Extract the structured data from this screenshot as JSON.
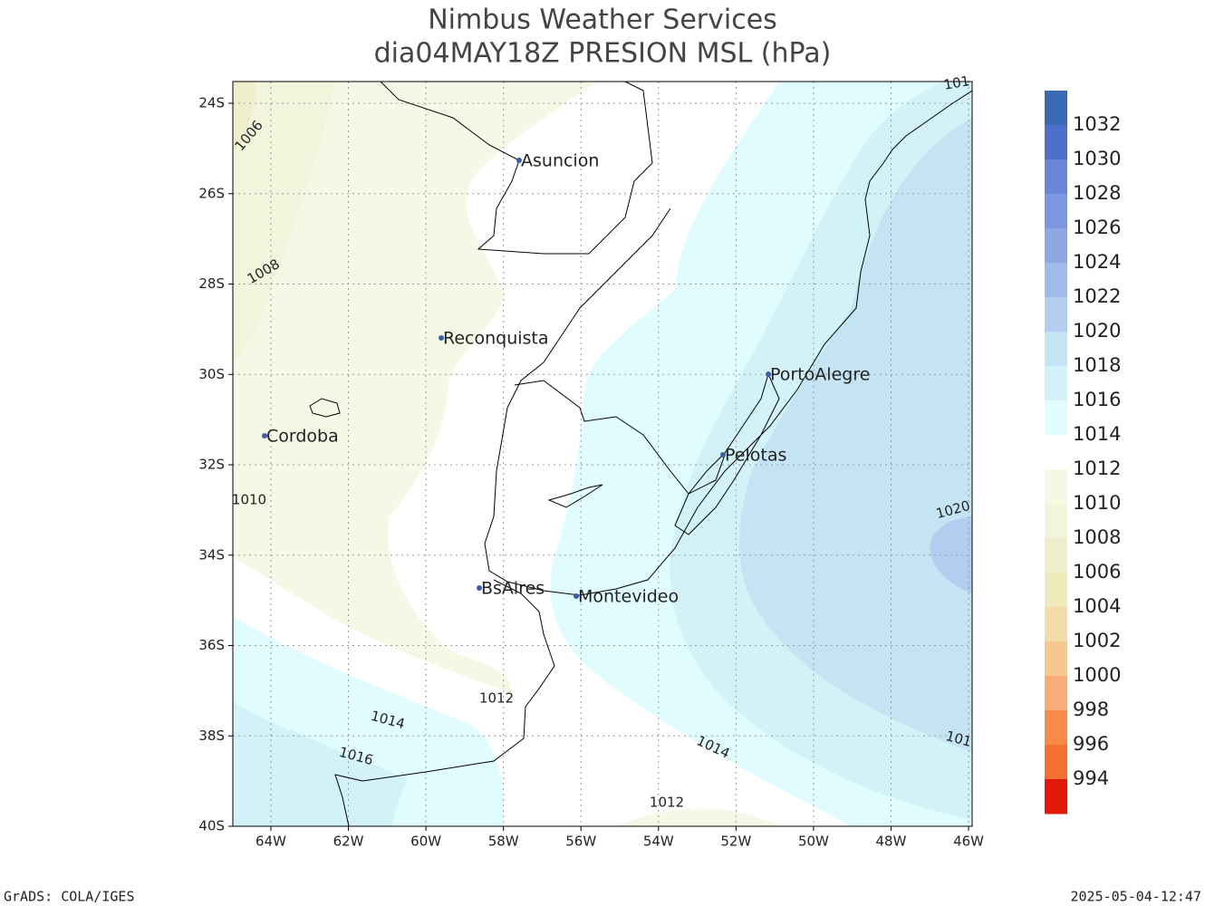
{
  "title": [
    "Nimbus Weather Services",
    "dia04MAY18Z PRESION MSL (hPa)"
  ],
  "lat_ticks": [
    "24S",
    "26S",
    "28S",
    "30S",
    "32S",
    "34S",
    "36S",
    "38S",
    "40S"
  ],
  "lon_ticks": [
    "64W",
    "62W",
    "60W",
    "58W",
    "56W",
    "54W",
    "52W",
    "50W",
    "48W",
    "46W"
  ],
  "cities": [
    "Asuncion",
    "Reconquista",
    "Cordoba",
    "PortoAlegre",
    "Pelotas",
    "BsAires",
    "Montevideo"
  ],
  "contour_labels": [
    "1006",
    "1008",
    "1010",
    "1012",
    "1014",
    "1016",
    "1014",
    "1012",
    "1020",
    "101",
    "101"
  ],
  "colorbar": {
    "levels": [
      1032,
      1030,
      1028,
      1026,
      1024,
      1022,
      1020,
      1018,
      1016,
      1014,
      1012,
      1010,
      1008,
      1006,
      1004,
      1002,
      1000,
      998,
      996,
      994
    ],
    "colors": [
      "#3a6ab4",
      "#4f6fcc",
      "#6a86d8",
      "#7c97e0",
      "#8ea8e4",
      "#a0baea",
      "#b2cdf0",
      "#c4e4f4",
      "#d2f2f8",
      "#e0fcfe",
      "#ffffff",
      "#f6f8e6",
      "#f2f4dc",
      "#eeeecc",
      "#eeeabc",
      "#f2dcaa",
      "#f6c890",
      "#f8ac78",
      "#f88a48",
      "#f47030",
      "#e01808"
    ]
  },
  "footer": {
    "left": "GrADS: COLA/IGES",
    "right": "2025-05-04-12:47"
  }
}
